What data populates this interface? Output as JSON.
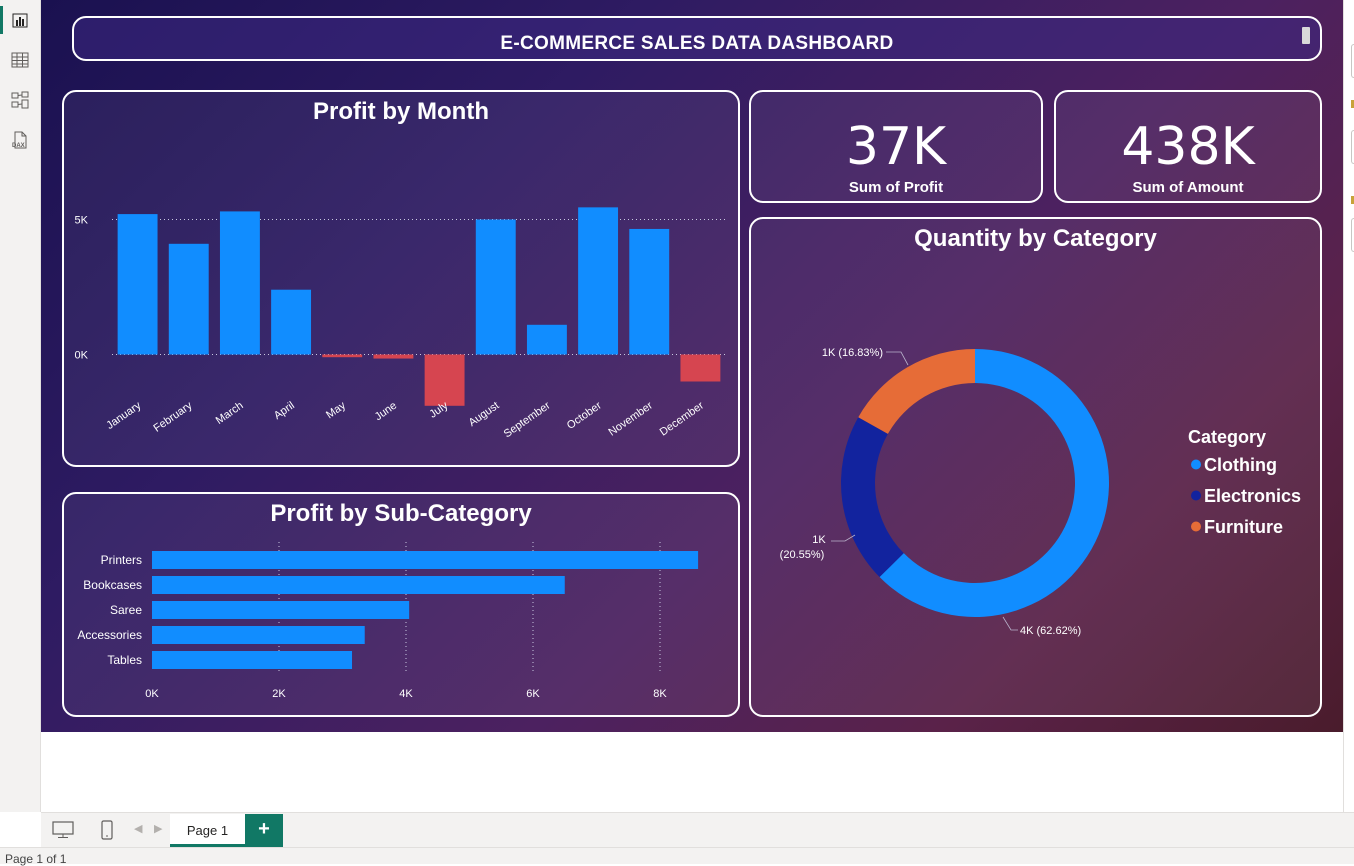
{
  "dashboard": {
    "title": "E-COMMERCE SALES DATA DASHBOARD"
  },
  "kpis": [
    {
      "value": "37K",
      "label": "Sum of Profit"
    },
    {
      "value": "438K",
      "label": "Sum of Amount"
    }
  ],
  "charts": {
    "profit_by_month_title": "Profit by Month",
    "profit_by_subcategory_title": "Profit by Sub-Category",
    "quantity_by_category_title": "Quantity by Category"
  },
  "chart_data": [
    {
      "type": "bar",
      "title": "Profit by Month",
      "categories": [
        "January",
        "February",
        "March",
        "April",
        "May",
        "June",
        "July",
        "August",
        "September",
        "October",
        "November",
        "December"
      ],
      "values": [
        5200,
        4100,
        5300,
        2400,
        -100,
        -150,
        -1900,
        5000,
        1100,
        5450,
        4650,
        -1000
      ],
      "ytick_labels": [
        "0K",
        "5K"
      ],
      "yticks": [
        0,
        5000
      ],
      "ylim": [
        -2500,
        7500
      ],
      "positive_color": "#118dff",
      "negative_color": "#d64550"
    },
    {
      "type": "bar",
      "orientation": "horizontal",
      "title": "Profit by Sub-Category",
      "categories": [
        "Printers",
        "Bookcases",
        "Saree",
        "Accessories",
        "Tables"
      ],
      "values": [
        8600,
        6500,
        4050,
        3350,
        3150
      ],
      "xtick_labels": [
        "0K",
        "2K",
        "4K",
        "6K",
        "8K"
      ],
      "xticks": [
        0,
        2000,
        4000,
        6000,
        8000
      ],
      "xlim": [
        0,
        9000
      ],
      "color": "#118dff"
    },
    {
      "type": "pie",
      "style": "donut",
      "title": "Quantity by Category",
      "legend_title": "Category",
      "slices": [
        {
          "name": "Clothing",
          "value": 62.62,
          "label": "4K (62.62%)",
          "color": "#118dff"
        },
        {
          "name": "Electronics",
          "value": 20.55,
          "label_line1": "1K",
          "label_line2": "(20.55%)",
          "color": "#12239e"
        },
        {
          "name": "Furniture",
          "value": 16.83,
          "label": "1K (16.83%)",
          "color": "#e66c37"
        }
      ]
    }
  ],
  "footer": {
    "page_tab": "Page 1",
    "add_page": "+",
    "status": "Page 1 of 1"
  },
  "colors": {
    "accent": "#117865"
  }
}
